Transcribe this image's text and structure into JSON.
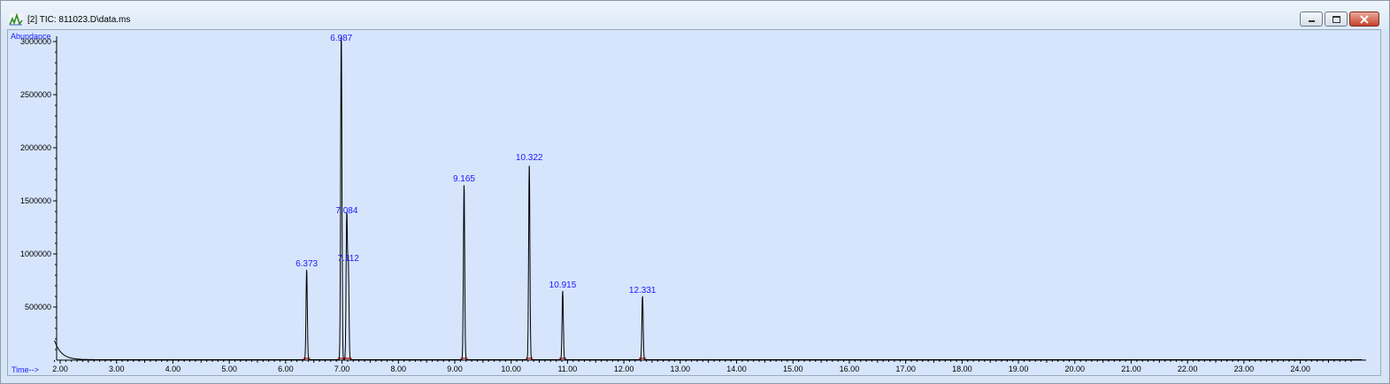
{
  "window": {
    "title": "[2] TIC: 811023.D\\data.ms",
    "app_icon": "chromatogram-icon",
    "buttons": [
      "minimize-icon",
      "maximize-icon",
      "close-icon"
    ],
    "colors": {
      "trace": "#000000",
      "peak_label": "#1a1aff",
      "axis_label": "#1a1aff",
      "integration": "#e03030",
      "plot_bg": "#d6e5fc"
    }
  },
  "chart_data": {
    "type": "line",
    "ylabel": "Abundance",
    "xlabel": "Time-->",
    "xlim": [
      1.9,
      25.1
    ],
    "ylim": [
      0,
      3100000
    ],
    "yticks": [
      500000,
      1000000,
      1500000,
      2000000,
      2500000,
      3000000
    ],
    "ytick_labels": [
      "500000",
      "1000000",
      "1500000",
      "2000000",
      "2500000",
      "3000000"
    ],
    "xticks": [
      2,
      3,
      4,
      5,
      6,
      7,
      8,
      9,
      10,
      11,
      12,
      13,
      14,
      15,
      16,
      17,
      18,
      19,
      20,
      21,
      22,
      23,
      24
    ],
    "xtick_labels": [
      "2.00",
      "3.00",
      "4.00",
      "5.00",
      "6.00",
      "7.00",
      "8.00",
      "9.00",
      "10.00",
      "11.00",
      "12.00",
      "13.00",
      "14.00",
      "15.00",
      "16.00",
      "17.00",
      "18.00",
      "19.00",
      "20.00",
      "21.00",
      "22.00",
      "23.00",
      "24.00"
    ],
    "peaks": [
      {
        "rt": 6.373,
        "label": "6.373",
        "height": 850000
      },
      {
        "rt": 6.987,
        "label": "6.987",
        "height": 3100000
      },
      {
        "rt": 7.084,
        "label": "7.084",
        "height": 1350000
      },
      {
        "rt": 7.112,
        "label": "7.112",
        "height": 900000
      },
      {
        "rt": 9.165,
        "label": "9.165",
        "height": 1650000
      },
      {
        "rt": 10.322,
        "label": "10.322",
        "height": 1850000
      },
      {
        "rt": 10.915,
        "label": "10.915",
        "height": 650000
      },
      {
        "rt": 12.331,
        "label": "12.331",
        "height": 600000
      }
    ]
  }
}
